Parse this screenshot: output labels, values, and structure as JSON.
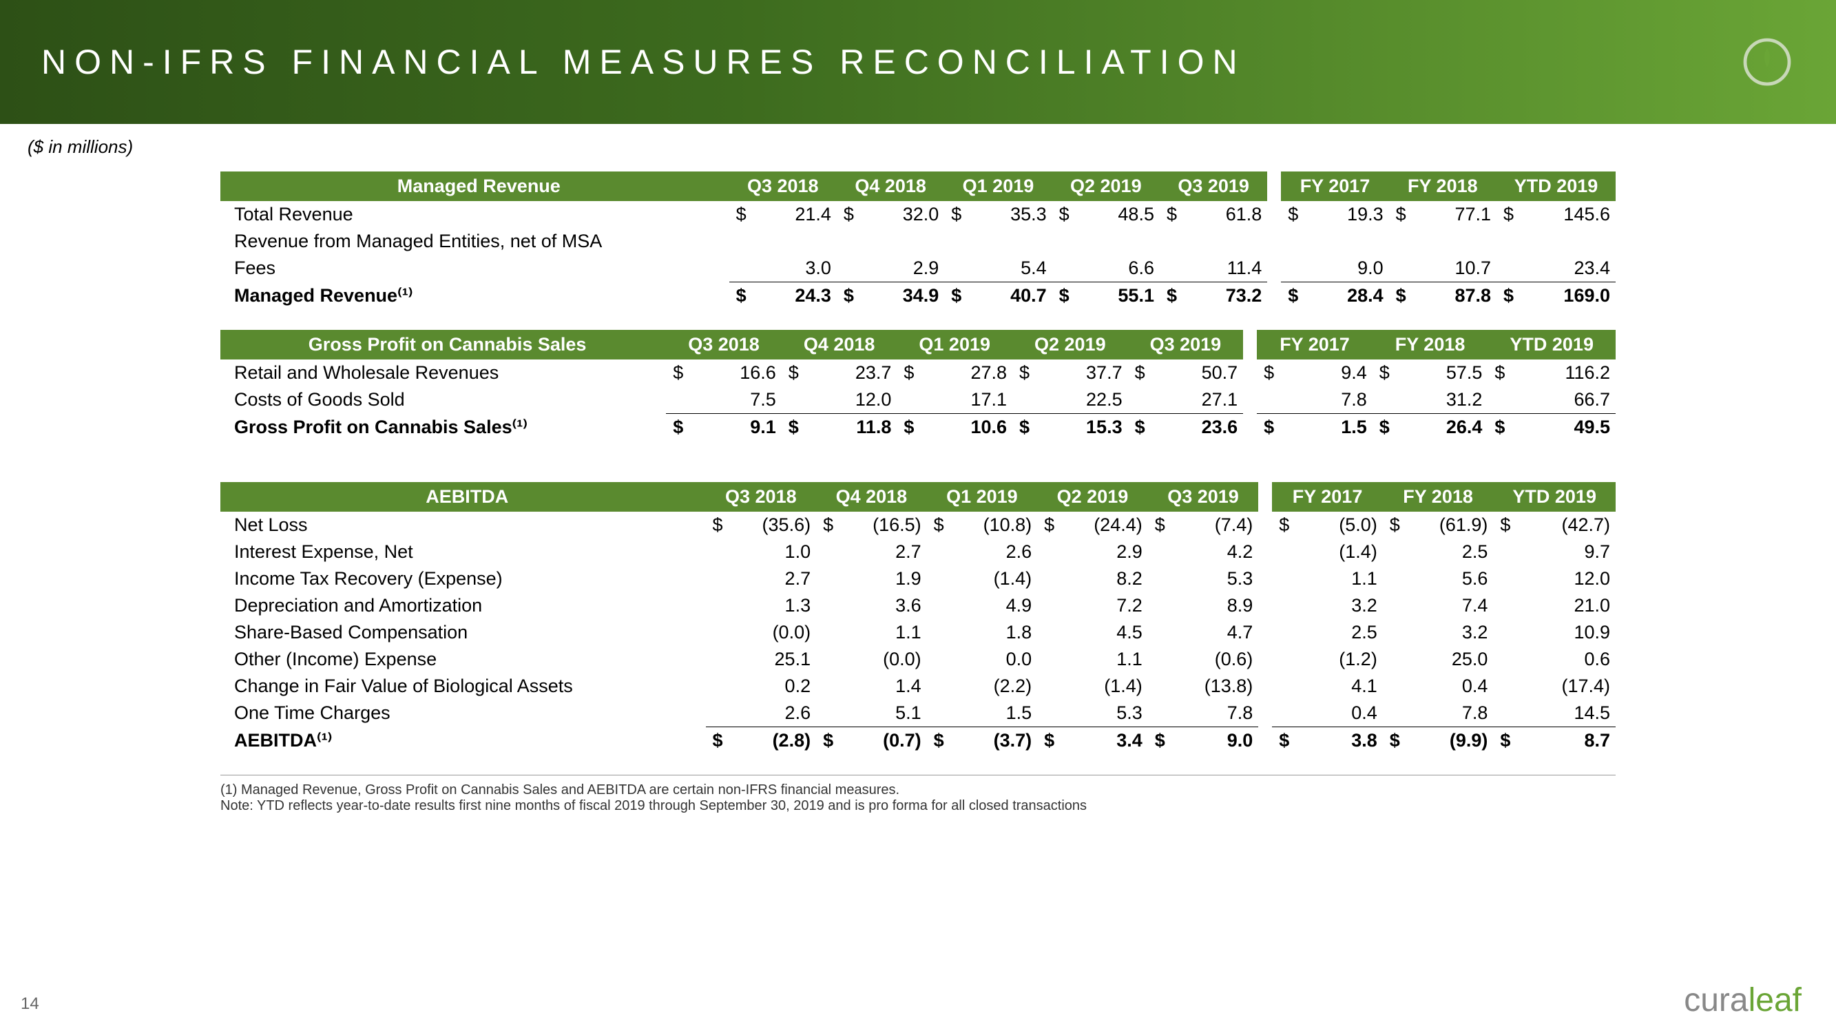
{
  "page": {
    "title": "NON-IFRS FINANCIAL MEASURES RECONCILIATION",
    "subtitle": "($ in millions)",
    "page_number": "14",
    "brand": "curaleaf"
  },
  "colors": {
    "header_gradient_start": "#2d5016",
    "header_gradient_end": "#6aa536",
    "table_header_bg": "#5a8a2f",
    "table_header_fg": "#ffffff"
  },
  "periods": {
    "quarters": [
      "Q3 2018",
      "Q4 2018",
      "Q1 2019",
      "Q2 2019",
      "Q3 2019"
    ],
    "years": [
      "FY 2017",
      "FY 2018",
      "YTD 2019"
    ]
  },
  "tables": {
    "managed_revenue": {
      "title": "Managed Revenue",
      "rows": [
        {
          "label": "Total Revenue",
          "dollar": true,
          "values": [
            "21.4",
            "32.0",
            "35.3",
            "48.5",
            "61.8",
            "19.3",
            "77.1",
            "145.6"
          ]
        },
        {
          "label": "Revenue from Managed Entities, net of MSA Fees",
          "multiline": true,
          "values": [
            "3.0",
            "2.9",
            "5.4",
            "6.6",
            "11.4",
            "9.0",
            "10.7",
            "23.4"
          ],
          "underline": true
        }
      ],
      "total": {
        "label": "Managed Revenue⁽¹⁾",
        "dollar": true,
        "values": [
          "24.3",
          "34.9",
          "40.7",
          "55.1",
          "73.2",
          "28.4",
          "87.8",
          "169.0"
        ]
      }
    },
    "gross_profit": {
      "title": "Gross Profit on Cannabis Sales",
      "rows": [
        {
          "label": "Retail and Wholesale Revenues",
          "dollar": true,
          "values": [
            "16.6",
            "23.7",
            "27.8",
            "37.7",
            "50.7",
            "9.4",
            "57.5",
            "116.2"
          ]
        },
        {
          "label": "Costs of Goods Sold",
          "values": [
            "7.5",
            "12.0",
            "17.1",
            "22.5",
            "27.1",
            "7.8",
            "31.2",
            "66.7"
          ],
          "underline": true
        }
      ],
      "total": {
        "label": "Gross Profit on Cannabis Sales⁽¹⁾",
        "dollar": true,
        "values": [
          "9.1",
          "11.8",
          "10.6",
          "15.3",
          "23.6",
          "1.5",
          "26.4",
          "49.5"
        ]
      }
    },
    "aebitda": {
      "title": "AEBITDA",
      "rows": [
        {
          "label": "Net Loss",
          "dollar": true,
          "values": [
            "(35.6)",
            "(16.5)",
            "(10.8)",
            "(24.4)",
            "(7.4)",
            "(5.0)",
            "(61.9)",
            "(42.7)"
          ]
        },
        {
          "label": "Interest Expense, Net",
          "values": [
            "1.0",
            "2.7",
            "2.6",
            "2.9",
            "4.2",
            "(1.4)",
            "2.5",
            "9.7"
          ]
        },
        {
          "label": "Income Tax Recovery (Expense)",
          "values": [
            "2.7",
            "1.9",
            "(1.4)",
            "8.2",
            "5.3",
            "1.1",
            "5.6",
            "12.0"
          ]
        },
        {
          "label": "Depreciation and Amortization",
          "values": [
            "1.3",
            "3.6",
            "4.9",
            "7.2",
            "8.9",
            "3.2",
            "7.4",
            "21.0"
          ]
        },
        {
          "label": "Share-Based Compensation",
          "values": [
            "(0.0)",
            "1.1",
            "1.8",
            "4.5",
            "4.7",
            "2.5",
            "3.2",
            "10.9"
          ]
        },
        {
          "label": "Other (Income) Expense",
          "values": [
            "25.1",
            "(0.0)",
            "0.0",
            "1.1",
            "(0.6)",
            "(1.2)",
            "25.0",
            "0.6"
          ]
        },
        {
          "label": "Change in Fair Value of Biological Assets",
          "values": [
            "0.2",
            "1.4",
            "(2.2)",
            "(1.4)",
            "(13.8)",
            "4.1",
            "0.4",
            "(17.4)"
          ]
        },
        {
          "label": "One Time Charges",
          "values": [
            "2.6",
            "5.1",
            "1.5",
            "5.3",
            "7.8",
            "0.4",
            "7.8",
            "14.5"
          ],
          "underline": true
        }
      ],
      "total": {
        "label": "AEBITDA⁽¹⁾",
        "dollar": true,
        "values": [
          "(2.8)",
          "(0.7)",
          "(3.7)",
          "3.4",
          "9.0",
          "3.8",
          "(9.9)",
          "8.7"
        ]
      }
    }
  },
  "footnotes": {
    "note1": "(1)    Managed Revenue, Gross Profit on Cannabis Sales and AEBITDA are certain non-IFRS financial measures.",
    "note2": "Note: YTD reflects year-to-date results first nine months of fiscal 2019 through September 30, 2019 and is pro forma for all closed transactions"
  }
}
